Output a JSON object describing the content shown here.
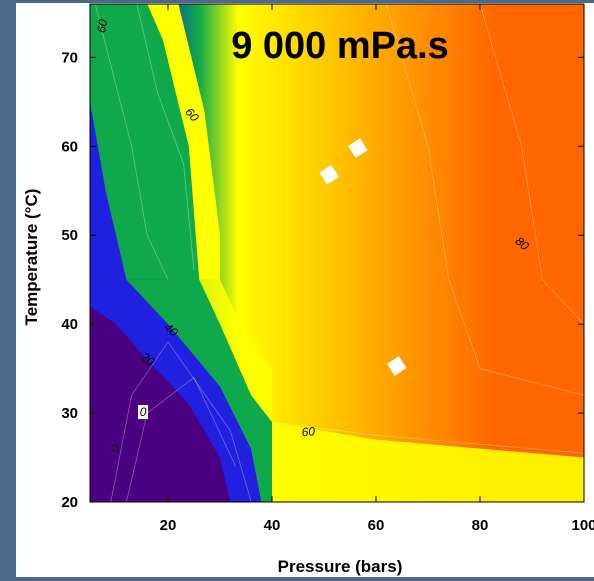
{
  "chart_data": {
    "type": "heatmap",
    "subtype": "filled contour",
    "title": "9 000 mPa.s",
    "xlabel": "Pressure (bars)",
    "ylabel": "Temperature (°C)",
    "xlim": [
      5,
      100
    ],
    "ylim": [
      20,
      76
    ],
    "xticks": [
      20,
      40,
      60,
      80,
      100
    ],
    "yticks": [
      20,
      30,
      40,
      50,
      60,
      70
    ],
    "xtick_labels": [
      "20",
      "40",
      "60",
      "80",
      "100"
    ],
    "ytick_labels": [
      "20",
      "30",
      "40",
      "50",
      "60",
      "70"
    ],
    "colormap": [
      "#4b0082",
      "#2020e0",
      "#0fa84a",
      "#ffff00",
      "#ffb300",
      "#ff6600"
    ],
    "contour_labels": [
      {
        "text": "0",
        "x": 10,
        "y": 26,
        "angle": -80
      },
      {
        "text": "0",
        "x": 15.2,
        "y": 30,
        "angle": 0,
        "boxed": true
      },
      {
        "text": "20",
        "x": 16,
        "y": 36,
        "angle": 40
      },
      {
        "text": "40",
        "x": 20.5,
        "y": 39.3,
        "angle": 40
      },
      {
        "text": "60",
        "x": 7.5,
        "y": 73.5,
        "angle": -80
      },
      {
        "text": "60",
        "x": 24.5,
        "y": 63.5,
        "angle": 50
      },
      {
        "text": "60",
        "x": 47,
        "y": 27.8,
        "angle": -5
      },
      {
        "text": "80",
        "x": 88,
        "y": 49,
        "angle": 40
      }
    ],
    "markers": [
      {
        "x": 51,
        "y": 56.8
      },
      {
        "x": 56.5,
        "y": 59.8
      },
      {
        "x": 64,
        "y": 35.3
      }
    ],
    "grid": false,
    "legend": "none"
  }
}
